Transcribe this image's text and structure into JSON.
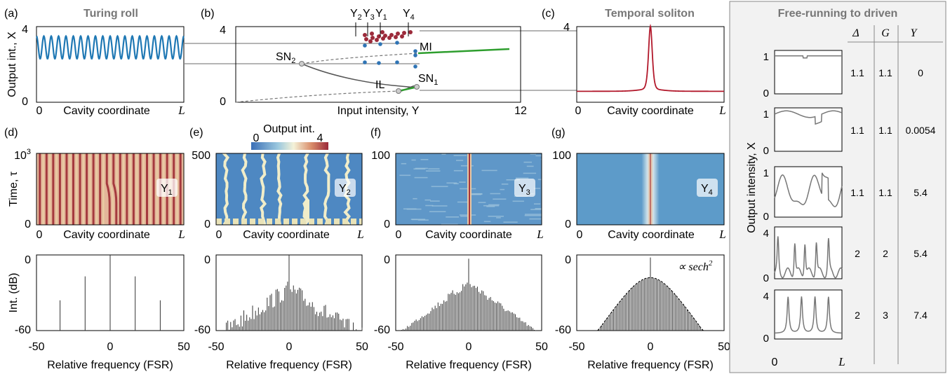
{
  "colors": {
    "turing": "#1f78b4",
    "soliton": "#b2182b",
    "stable": "#2e9e2e",
    "branch": "#555555",
    "mi_dots_red": "#9c2b3b",
    "mi_dots_blue": "#2f74b5",
    "side_line": "#777777",
    "side_bg": "#f2f2f2",
    "cmap_low": "#3b6fb6",
    "cmap_mid": "#f4f2d8",
    "cmap_high": "#9b2a3a"
  },
  "panels": {
    "a": {
      "label": "(a)",
      "title": "Turing roll"
    },
    "b": {
      "label": "(b)"
    },
    "c": {
      "label": "(c)",
      "title": "Temporal soliton"
    },
    "d": {
      "label": "(d)"
    },
    "e": {
      "label": "(e)"
    },
    "f": {
      "label": "(f)"
    },
    "g": {
      "label": "(g)"
    }
  },
  "labels": {
    "output_int_x": "Output int., X",
    "cavity_coordinate": "Cavity coordinate",
    "input_intensity": "Input intensity, Y",
    "time_tau": "Time, τ",
    "int_db": "Int. (dB)",
    "relative_frequency": "Relative frequency (FSR)",
    "colorbar_title": "Output int.",
    "L": "L",
    "sech": "∝ sech²"
  },
  "annotations": {
    "Y2": "Y₂",
    "Y3": "Y₃",
    "Y1": "Y₁",
    "Y4": "Y₄",
    "SN2": "SN₂",
    "SN1": "SN₁",
    "MI": "MI",
    "IL": "IL"
  },
  "chart_data": [
    {
      "id": "a",
      "type": "line",
      "title": "Turing roll",
      "xlabel": "Cavity coordinate",
      "ylabel": "Output int., X",
      "xticks": [
        "0",
        "L"
      ],
      "yticks": [
        "0",
        "4"
      ],
      "ylim": [
        0,
        4
      ],
      "series": [
        {
          "kind": "turing_roll",
          "periods": 20,
          "min": 2.3,
          "max": 3.5
        }
      ]
    },
    {
      "id": "b",
      "type": "line",
      "xlabel": "Input intensity, Y",
      "xlim": [
        0,
        12
      ],
      "ylim": [
        0,
        4
      ],
      "xticks": [
        "0",
        "12"
      ],
      "yticks": [
        "0",
        "4"
      ],
      "points": {
        "SN1": {
          "x": 7.8,
          "y": 0.9
        },
        "SN2": {
          "x": 3.3,
          "y": 2.33
        },
        "IL": {
          "x": 7.2,
          "y": 0.58
        },
        "MI": {
          "x": 7.8,
          "y": 2.93
        }
      },
      "markers": {
        "Y2": 5.8,
        "Y3": 6.2,
        "Y1": 6.6,
        "Y4": 7.7
      }
    },
    {
      "id": "c",
      "type": "line",
      "title": "Temporal soliton",
      "xlabel": "Cavity coordinate",
      "xticks": [
        "0",
        "L"
      ],
      "yticks": [
        "0",
        "4"
      ],
      "ylim": [
        0,
        4
      ],
      "series": [
        {
          "kind": "soliton",
          "background": 0.58,
          "peak": 3.9
        }
      ]
    },
    {
      "id": "d",
      "type": "heatmap",
      "xlabel": "Cavity coordinate",
      "ylabel": "Time, τ",
      "yticks": [
        "0",
        "10³"
      ],
      "xticks": [
        "0",
        "L"
      ],
      "tag": "Y₁"
    },
    {
      "id": "e",
      "type": "heatmap",
      "xlabel": "Cavity coordinate",
      "yticks": [
        "0",
        "500"
      ],
      "xticks": [
        "0",
        "L"
      ],
      "tag": "Y₂",
      "colorbar": {
        "title": "Output int.",
        "min": "0",
        "max": "4"
      }
    },
    {
      "id": "f",
      "type": "heatmap",
      "xlabel": "Cavity coordinate",
      "yticks": [
        "0",
        "100"
      ],
      "xticks": [
        "0",
        "L"
      ],
      "tag": "Y₃"
    },
    {
      "id": "g",
      "type": "heatmap",
      "xlabel": "Cavity coordinate",
      "yticks": [
        "0",
        "100"
      ],
      "xticks": [
        "0",
        "L"
      ],
      "tag": "Y₄"
    },
    {
      "id": "d_spec",
      "type": "bar",
      "xlabel": "Relative frequency (FSR)",
      "ylabel": "Int. (dB)",
      "xlim": [
        -50,
        50
      ],
      "ylim": [
        -60,
        0
      ],
      "xticks": [
        "-50",
        "0",
        "50"
      ],
      "yticks": [
        "0",
        "-60"
      ],
      "lines": [
        {
          "x": 0,
          "y": 0
        },
        {
          "x": -17,
          "y": -17
        },
        {
          "x": 17,
          "y": -17
        },
        {
          "x": -34,
          "y": -36
        },
        {
          "x": 34,
          "y": -36
        }
      ]
    },
    {
      "id": "e_spec",
      "type": "bar",
      "xlabel": "Relative frequency (FSR)",
      "xlim": [
        -50,
        50
      ],
      "ylim": [
        -60,
        0
      ],
      "xticks": [
        "-50",
        "0",
        "50"
      ],
      "yticks": [
        "0",
        "-60"
      ],
      "kind": "noisy_comb",
      "peak": -20
    },
    {
      "id": "f_spec",
      "type": "bar",
      "xlabel": "Relative frequency (FSR)",
      "xlim": [
        -50,
        50
      ],
      "ylim": [
        -60,
        0
      ],
      "xticks": [
        "-50",
        "0",
        "50"
      ],
      "yticks": [
        "0",
        "-60"
      ],
      "kind": "triangle_comb",
      "peak": -18
    },
    {
      "id": "g_spec",
      "type": "bar",
      "xlabel": "Relative frequency (FSR)",
      "xlim": [
        -50,
        50
      ],
      "ylim": [
        -60,
        0
      ],
      "xticks": [
        "-50",
        "0",
        "50"
      ],
      "yticks": [
        "0",
        "-60"
      ],
      "kind": "sech_comb",
      "peak": -18,
      "annotation": "∝ sech²"
    }
  ],
  "sidebar": {
    "title": "Free-running to driven",
    "ylabel": "Output intensity, X",
    "headers": [
      "Δ",
      "G",
      "Y"
    ],
    "xticks": [
      "0",
      "L"
    ],
    "rows": [
      {
        "delta": "1.1",
        "g": "1.1",
        "y": "0",
        "yticks": [
          "0",
          "1"
        ]
      },
      {
        "delta": "1.1",
        "g": "1.1",
        "y": "0.0054",
        "yticks": [
          "0",
          "1"
        ]
      },
      {
        "delta": "1.1",
        "g": "1.1",
        "y": "5.4",
        "yticks": [
          "0",
          "1"
        ]
      },
      {
        "delta": "2",
        "g": "2",
        "y": "5.4",
        "yticks": [
          "0",
          "4"
        ]
      },
      {
        "delta": "2",
        "g": "3",
        "y": "7.4",
        "yticks": [
          "0",
          "4"
        ]
      }
    ]
  }
}
